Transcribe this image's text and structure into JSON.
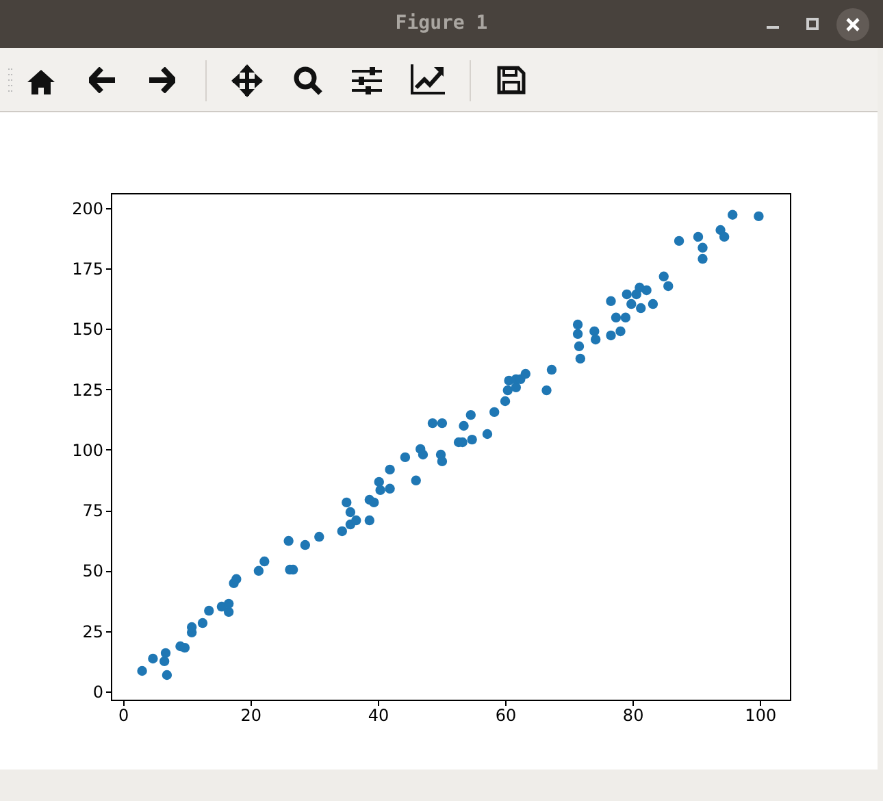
{
  "chart_data": {
    "type": "scatter",
    "title": "Figure 1",
    "marker": "circle",
    "grid": false,
    "legend": false,
    "xlim": [
      -1.9,
      104.7
    ],
    "xticks": [
      0,
      20,
      40,
      60,
      80,
      100
    ],
    "ylim": [
      -3.4,
      206.2
    ],
    "yticks": [
      0,
      25,
      50,
      75,
      100,
      125,
      150,
      175,
      200
    ],
    "series": [
      {
        "color": "#1f77b4",
        "x": [
          3.0,
          4.7,
          6.5,
          6.7,
          6.9,
          9.0,
          9.7,
          10.8,
          10.8,
          12.5,
          13.5,
          15.5,
          16.6,
          16.6,
          17.4,
          17.8,
          21.3,
          22.2,
          26.0,
          26.2,
          26.7,
          28.6,
          30.8,
          34.4,
          35.1,
          35.7,
          35.7,
          36.6,
          38.7,
          38.7,
          39.4,
          40.2,
          40.4,
          41.9,
          41.9,
          44.3,
          46.0,
          46.7,
          47.1,
          48.6,
          50.1,
          49.9,
          50.1,
          52.7,
          53.3,
          54.8,
          53.5,
          54.6,
          57.2,
          58.3,
          60.0,
          60.4,
          60.6,
          61.7,
          61.7,
          62.4,
          63.2,
          66.5,
          67.3,
          71.4,
          71.4,
          71.6,
          71.8,
          74.0,
          74.2,
          76.6,
          76.6,
          78.1,
          77.4,
          78.9,
          79.1,
          79.8,
          80.6,
          81.1,
          81.3,
          82.2,
          83.2,
          84.9,
          85.6,
          87.3,
          90.3,
          91.0,
          91.0,
          93.8,
          94.4,
          95.7,
          99.8
        ],
        "values": [
          8.5,
          13.6,
          12.5,
          15.9,
          6.8,
          18.7,
          18.1,
          24.4,
          26.6,
          28.3,
          33.4,
          35.1,
          32.9,
          36.3,
          44.8,
          46.5,
          49.9,
          53.8,
          62.3,
          50.4,
          50.4,
          60.6,
          64.0,
          66.3,
          78.2,
          74.2,
          69.1,
          70.8,
          70.8,
          79.3,
          78.2,
          86.7,
          83.3,
          83.9,
          91.8,
          96.9,
          87.3,
          100.3,
          98.0,
          111.0,
          111.0,
          98.0,
          95.2,
          103.1,
          103.1,
          104.2,
          109.9,
          114.4,
          106.5,
          115.6,
          120.1,
          124.6,
          128.6,
          125.8,
          129.2,
          129.2,
          131.4,
          124.6,
          133.1,
          151.8,
          147.9,
          142.8,
          137.7,
          149.0,
          145.6,
          161.5,
          147.3,
          149.0,
          154.7,
          154.7,
          164.3,
          160.3,
          164.3,
          167.1,
          158.6,
          166.0,
          160.3,
          171.7,
          167.7,
          186.4,
          188.1,
          183.6,
          179.0,
          190.9,
          188.1,
          197.2,
          196.6
        ]
      }
    ]
  }
}
